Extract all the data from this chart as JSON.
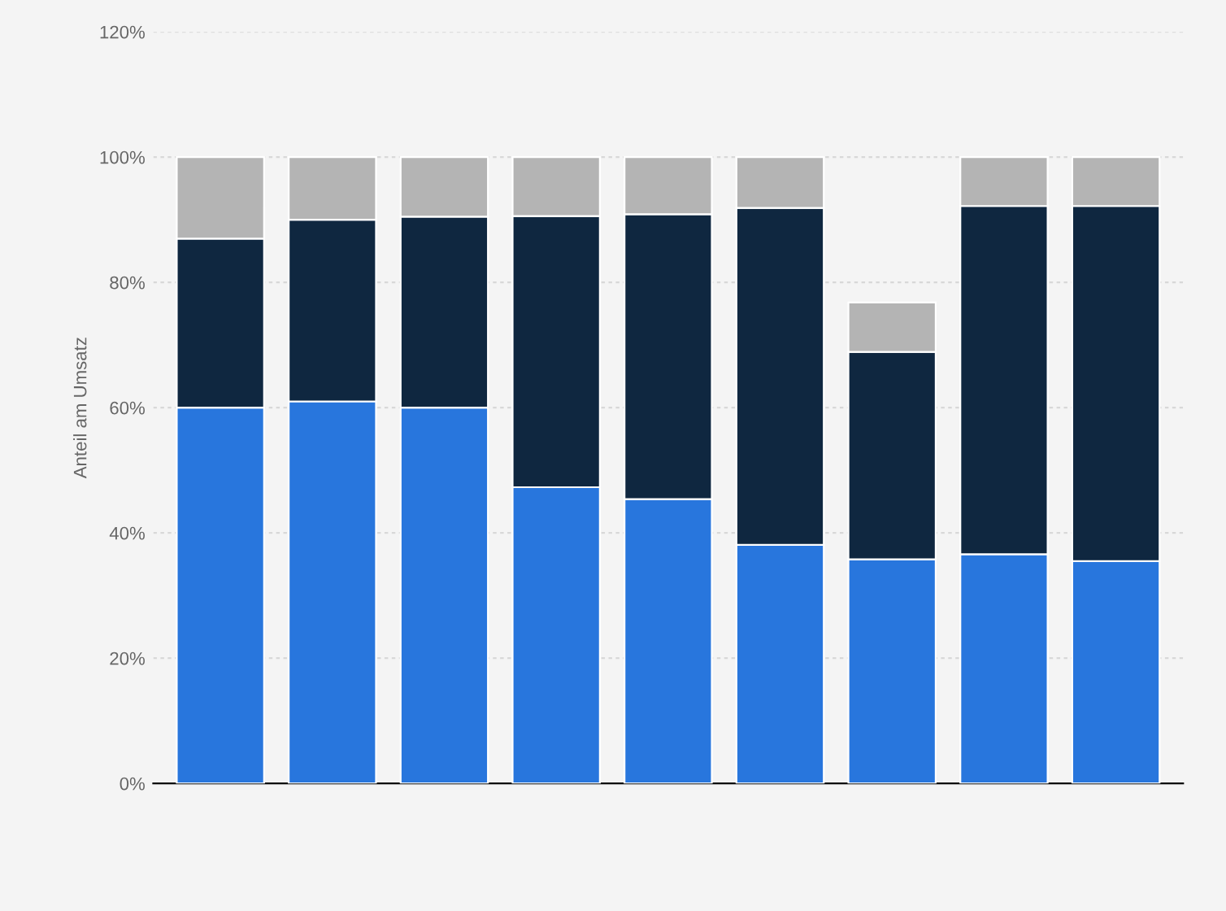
{
  "chart_data": {
    "type": "bar",
    "stacked": true,
    "ylabel": "Anteil am Umsatz",
    "categories": [
      null,
      null,
      null,
      null,
      null,
      null,
      null,
      null,
      null
    ],
    "series": [
      {
        "color": "#2876dd",
        "values": [
          60,
          61,
          60,
          47.3,
          45.4,
          38.1,
          35.8,
          36.6,
          35.5
        ]
      },
      {
        "color": "#0f2740",
        "values": [
          27,
          29,
          30.5,
          43.3,
          45.5,
          53.8,
          33.1,
          55.6,
          56.7
        ]
      },
      {
        "color": "#b4b4b4",
        "values": [
          13,
          10,
          9.5,
          9.4,
          9.1,
          8.1,
          7.9,
          7.8,
          7.8
        ]
      }
    ],
    "ylim": [
      0,
      120
    ],
    "yticks": [
      {
        "value": 0,
        "label": "0%"
      },
      {
        "value": 20,
        "label": "20%"
      },
      {
        "value": 40,
        "label": "40%"
      },
      {
        "value": 60,
        "label": "60%"
      },
      {
        "value": 80,
        "label": "80%"
      },
      {
        "value": 100,
        "label": "100%"
      },
      {
        "value": 120,
        "label": "120%"
      }
    ],
    "grid": "y",
    "tick_labels": "y"
  }
}
